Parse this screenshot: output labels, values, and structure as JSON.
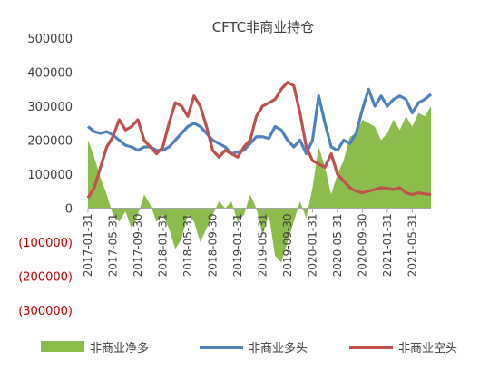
{
  "chart_data": {
    "type": "line",
    "title": "CFTC非商业持仓",
    "xlabel": "",
    "ylabel": "",
    "ylim": [
      -300000,
      500000
    ],
    "y_ticks": [
      {
        "value": 500000,
        "label": "500000"
      },
      {
        "value": 400000,
        "label": "400000"
      },
      {
        "value": 300000,
        "label": "300000"
      },
      {
        "value": 200000,
        "label": "200000"
      },
      {
        "value": 100000,
        "label": "100000"
      },
      {
        "value": 0,
        "label": "0"
      },
      {
        "value": -100000,
        "label": "(100000)"
      },
      {
        "value": -200000,
        "label": "(200000)"
      },
      {
        "value": -300000,
        "label": "(300000)"
      }
    ],
    "x_tick_labels": [
      "2017-01-31",
      "2017-05-31",
      "2017-09-30",
      "2018-01-31",
      "2018-05-31",
      "2018-09-30",
      "2019-01-31",
      "2019-05-31",
      "2019-09-30",
      "2020-01-31",
      "2020-05-31",
      "2020-09-30",
      "2021-01-31",
      "2021-05-31"
    ],
    "x": [
      "2017-01",
      "2017-02",
      "2017-03",
      "2017-04",
      "2017-05",
      "2017-06",
      "2017-07",
      "2017-08",
      "2017-09",
      "2017-10",
      "2017-11",
      "2017-12",
      "2018-01",
      "2018-02",
      "2018-03",
      "2018-04",
      "2018-05",
      "2018-06",
      "2018-07",
      "2018-08",
      "2018-09",
      "2018-10",
      "2018-11",
      "2018-12",
      "2019-01",
      "2019-02",
      "2019-03",
      "2019-04",
      "2019-05",
      "2019-06",
      "2019-07",
      "2019-08",
      "2019-09",
      "2019-10",
      "2019-11",
      "2019-12",
      "2020-01",
      "2020-02",
      "2020-03",
      "2020-04",
      "2020-05",
      "2020-06",
      "2020-07",
      "2020-08",
      "2020-09",
      "2020-10",
      "2020-11",
      "2020-12",
      "2021-01",
      "2021-02",
      "2021-03",
      "2021-04",
      "2021-05",
      "2021-06",
      "2021-07",
      "2021-08"
    ],
    "series": [
      {
        "name": "非商业净多",
        "type": "area",
        "color": "#8cbd4c",
        "values": [
          200000,
          150000,
          90000,
          40000,
          -20000,
          -40000,
          -10000,
          -60000,
          -20000,
          40000,
          10000,
          -40000,
          -20000,
          -60000,
          -120000,
          -90000,
          -20000,
          -40000,
          -100000,
          -60000,
          -20000,
          20000,
          0,
          20000,
          -40000,
          -20000,
          40000,
          0,
          -80000,
          -20000,
          -140000,
          -160000,
          -100000,
          -40000,
          20000,
          -30000,
          60000,
          180000,
          120000,
          40000,
          100000,
          140000,
          210000,
          220000,
          260000,
          250000,
          240000,
          200000,
          220000,
          260000,
          230000,
          270000,
          240000,
          280000,
          270000,
          300000
        ]
      },
      {
        "name": "非商业多头",
        "type": "line",
        "color": "#4f81bd",
        "values": [
          240000,
          225000,
          220000,
          225000,
          215000,
          200000,
          185000,
          180000,
          170000,
          180000,
          180000,
          170000,
          170000,
          180000,
          200000,
          220000,
          240000,
          250000,
          240000,
          220000,
          200000,
          190000,
          180000,
          160000,
          165000,
          170000,
          190000,
          210000,
          210000,
          205000,
          240000,
          230000,
          200000,
          180000,
          200000,
          160000,
          200000,
          330000,
          250000,
          180000,
          170000,
          200000,
          190000,
          220000,
          290000,
          350000,
          300000,
          330000,
          300000,
          320000,
          330000,
          320000,
          280000,
          310000,
          320000,
          335000
        ]
      },
      {
        "name": "非商业空头",
        "type": "line",
        "color": "#c0504d",
        "values": [
          30000,
          60000,
          120000,
          180000,
          210000,
          260000,
          230000,
          240000,
          260000,
          200000,
          180000,
          160000,
          180000,
          250000,
          310000,
          300000,
          270000,
          330000,
          300000,
          240000,
          170000,
          150000,
          170000,
          160000,
          150000,
          180000,
          200000,
          270000,
          300000,
          310000,
          320000,
          350000,
          370000,
          360000,
          280000,
          180000,
          140000,
          130000,
          120000,
          160000,
          100000,
          80000,
          60000,
          50000,
          45000,
          50000,
          55000,
          60000,
          58000,
          55000,
          60000,
          45000,
          40000,
          45000,
          42000,
          40000
        ]
      }
    ],
    "legend": "bottom",
    "grid": false,
    "negative_tick_color": "#c00000"
  }
}
